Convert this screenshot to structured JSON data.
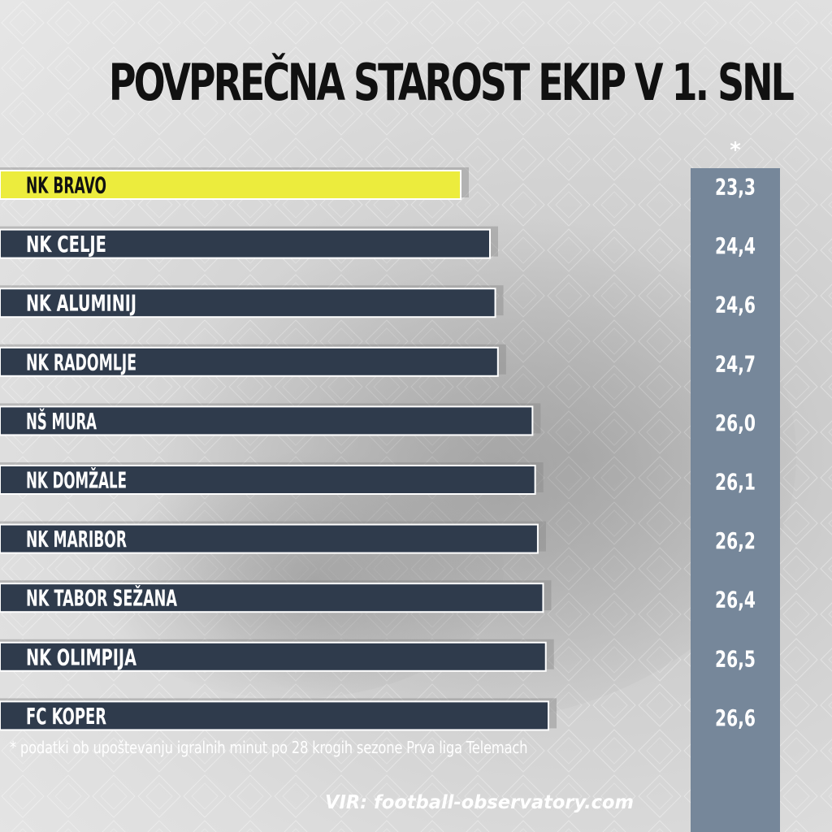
{
  "title": "POVPREČNA STAROST EKIP V 1. SNL",
  "value_marker": "*",
  "footnote": "* podatki ob upoštevanju igralnih minut po 28 krogih sezone Prva liga Telemach",
  "source": "VIR: football-observatory.com",
  "colors": {
    "highlight_bar": "#ecec3d",
    "bar": "#2f3b4c",
    "value_column": "#76879a",
    "title": "#111111",
    "label": "#ffffff",
    "highlight_label": "#111111"
  },
  "chart_data": {
    "type": "bar",
    "orientation": "horizontal",
    "title": "POVPREČNA STAROST EKIP V 1. SNL",
    "categories": [
      "NK BRAVO",
      "NK CELJE",
      "NK ALUMINIJ",
      "NK RADOMLJE",
      "NŠ MURA",
      "NK DOMŽALE",
      "NK MARIBOR",
      "NK TABOR SEŽANA",
      "NK OLIMPIJA",
      "FC KOPER"
    ],
    "values": [
      23.3,
      24.4,
      24.6,
      24.7,
      26.0,
      26.1,
      26.2,
      26.4,
      26.5,
      26.6
    ],
    "value_labels": [
      "23,3",
      "24,4",
      "24,6",
      "24,7",
      "26,0",
      "26,1",
      "26,2",
      "26,4",
      "26,5",
      "26,6"
    ],
    "highlighted_category": "NK BRAVO",
    "grid": false,
    "legend": "none"
  }
}
